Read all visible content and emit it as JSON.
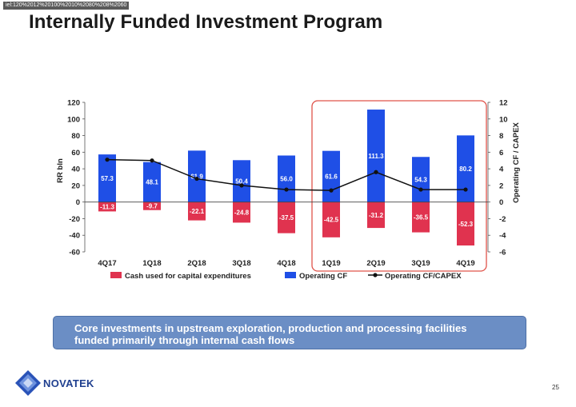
{
  "header": {
    "code": "iel:120%2012%20100%2010%2080%208%2060",
    "title": "Internally Funded Investment Program"
  },
  "chart_data": {
    "type": "bar",
    "categories": [
      "4Q17",
      "1Q18",
      "2Q18",
      "3Q18",
      "4Q18",
      "1Q19",
      "2Q19",
      "3Q19",
      "4Q19"
    ],
    "series": [
      {
        "name": "Cash used for capital expenditures",
        "type": "bar",
        "color": "#e0334f",
        "values": [
          -11.3,
          -9.7,
          -22.1,
          -24.8,
          -37.5,
          -42.5,
          -31.2,
          -36.5,
          -52.3
        ],
        "labels": [
          "-11.3",
          "-9.7",
          "-22.1",
          "-24.8",
          "-37.5",
          "-42.5",
          "-31.2",
          "-36.5",
          "-52.3"
        ]
      },
      {
        "name": "Operating CF",
        "type": "bar",
        "color": "#1f4fe6",
        "values": [
          57.3,
          48.1,
          61.9,
          50.4,
          56.0,
          61.6,
          111.3,
          54.3,
          80.2
        ],
        "labels": [
          "57.3",
          "48.1",
          "61.9",
          "50.4",
          "56.0",
          "61.6",
          "111.3",
          "54.3",
          "80.2"
        ]
      },
      {
        "name": "Operating CF/CAPEX",
        "type": "line",
        "axis": "right",
        "color": "#111111",
        "values": [
          5.1,
          5.0,
          2.8,
          2.0,
          1.5,
          1.4,
          3.6,
          1.5,
          1.5
        ]
      }
    ],
    "ylabel": "RR bln",
    "y2label": "Operating CF / CAPEX",
    "ylim": [
      -60,
      120
    ],
    "y2lim": [
      -6,
      12
    ],
    "yticks": [
      "120",
      "100",
      "80",
      "60",
      "40",
      "20",
      "0",
      "-20",
      "-40",
      "-60"
    ],
    "y2ticks": [
      "12",
      "10",
      "8",
      "6",
      "4",
      "2",
      "0",
      "-2",
      "-4",
      "-6"
    ],
    "grid": false,
    "legend": "bottom",
    "highlight": {
      "from": "1Q19",
      "to": "4Q19",
      "color": "#e0534a"
    }
  },
  "callout": {
    "line1": "Core investments in upstream exploration, production and processing facilities",
    "line2": "funded primarily through internal cash flows"
  },
  "footer": {
    "brand": "NOVATEK",
    "page": "25"
  }
}
